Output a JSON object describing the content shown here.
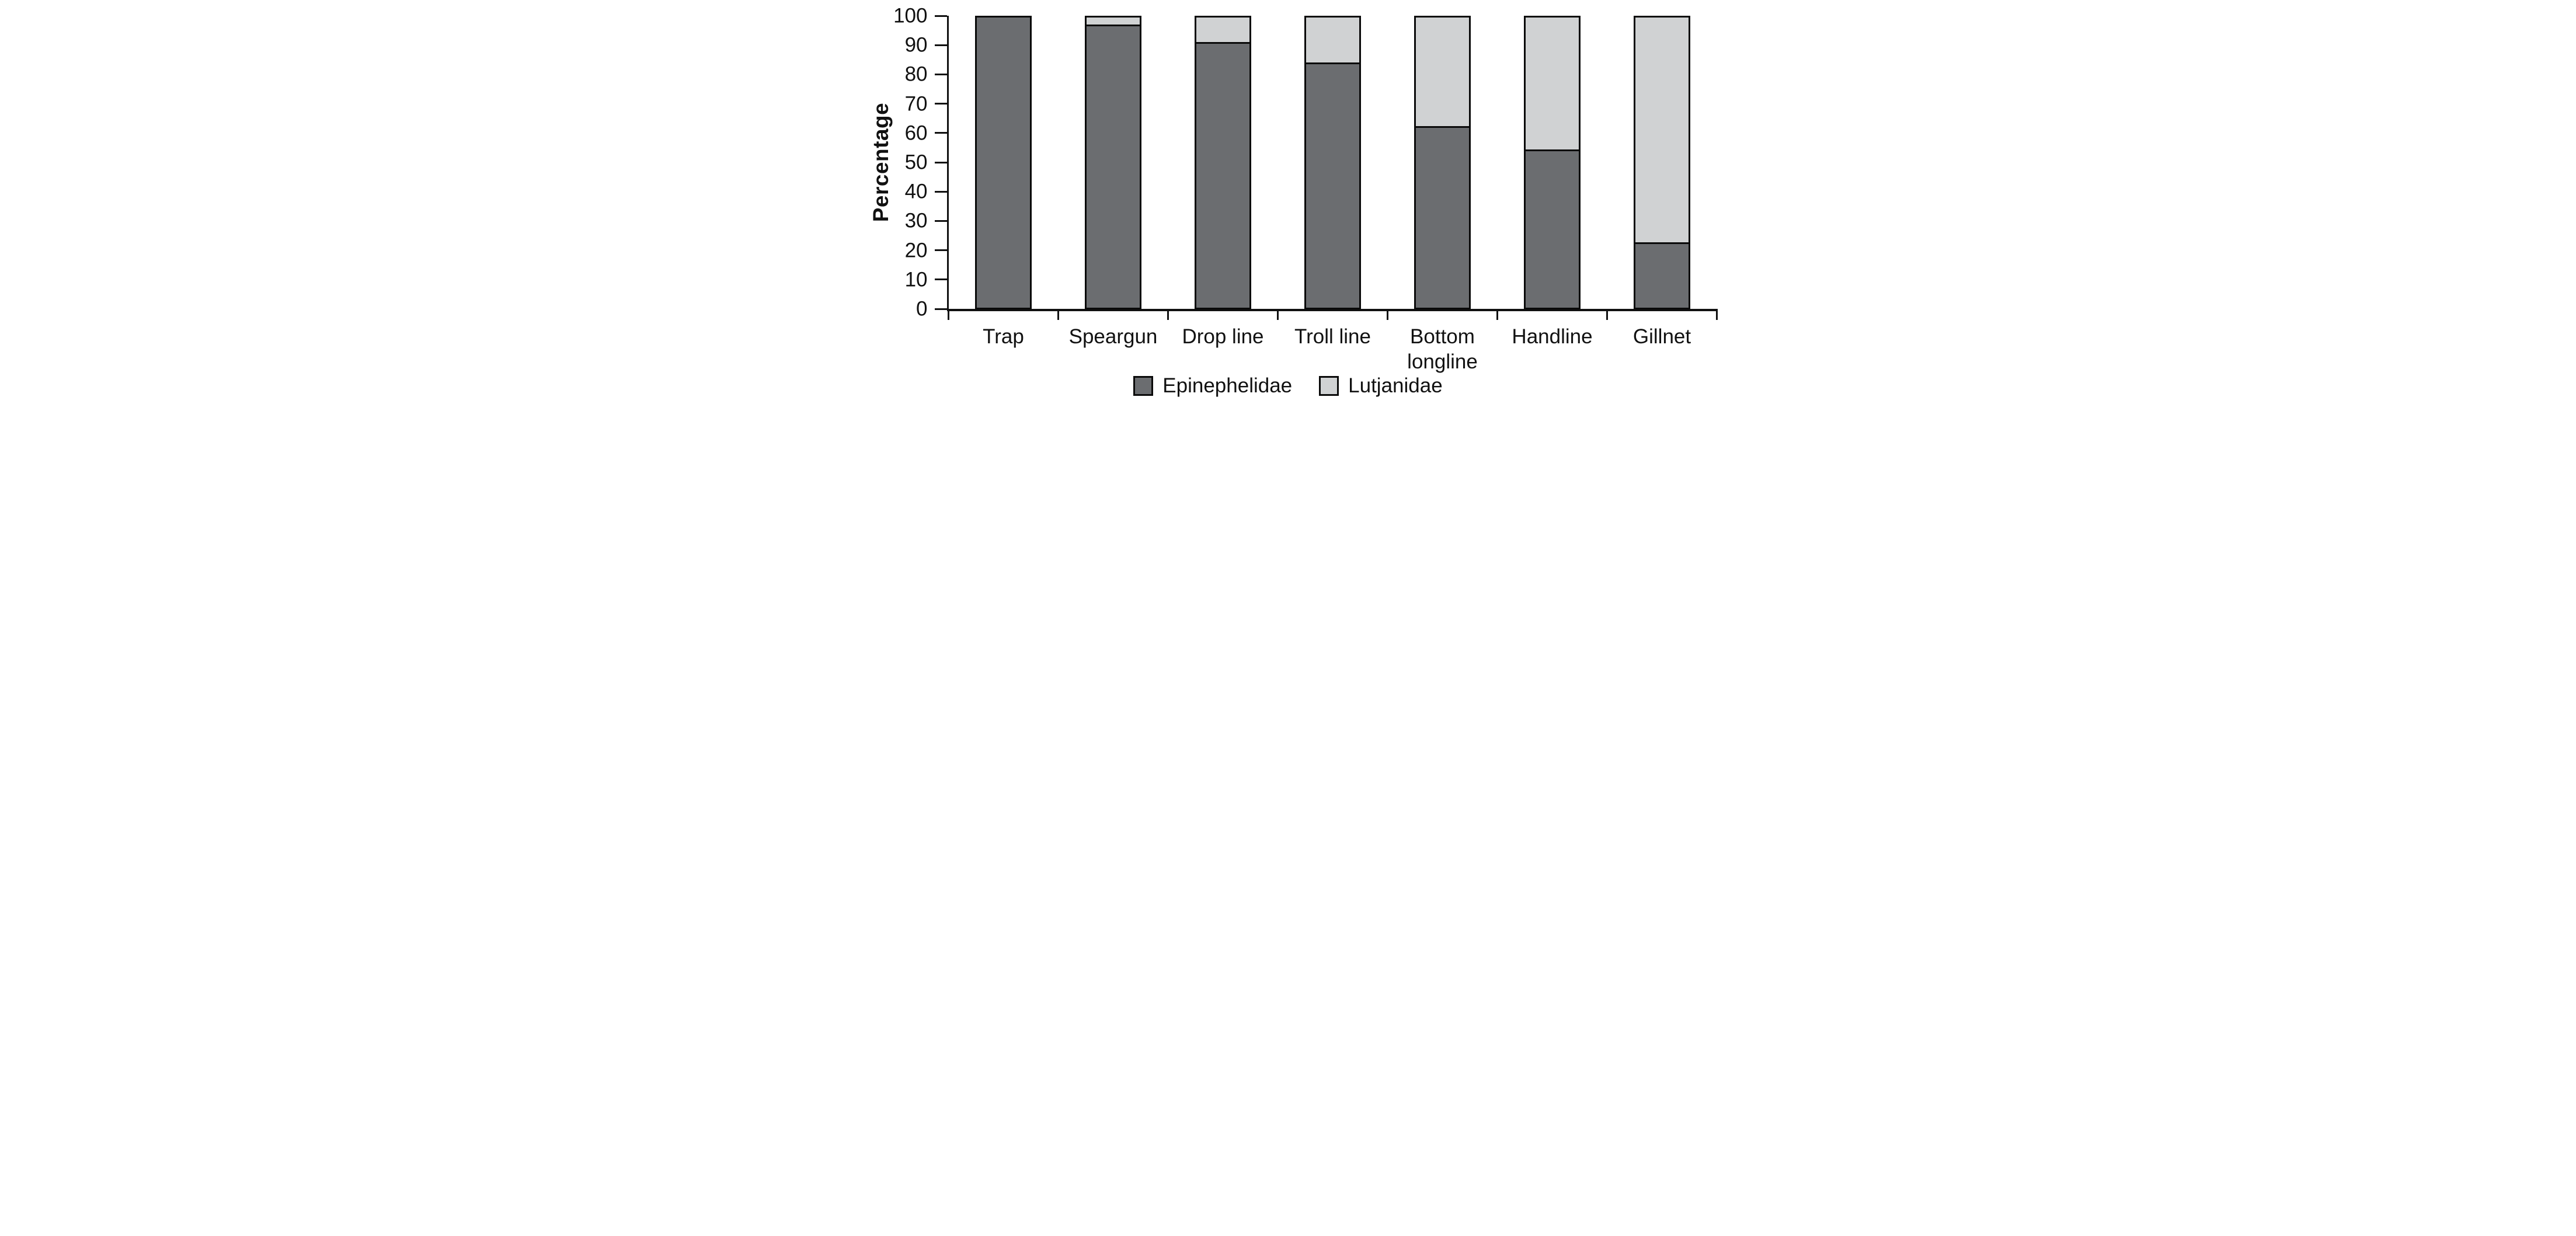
{
  "figure": {
    "background_color": "#ffffff",
    "text_color": "#111111",
    "outline_color": "#0a0a0a"
  },
  "chart_data": {
    "type": "bar",
    "stacked": true,
    "orientation": "vertical",
    "title": "",
    "xlabel": "",
    "ylabel": "Percentage",
    "ylim": [
      0,
      100
    ],
    "yticks": [
      0,
      10,
      20,
      30,
      40,
      50,
      60,
      70,
      80,
      90,
      100
    ],
    "grid": false,
    "legend_position": "bottom-center",
    "categories": [
      "Trap",
      "Speargun",
      "Drop line",
      "Troll line",
      "Bottom longline",
      "Handline",
      "Gillnet"
    ],
    "series": [
      {
        "name": "Epinephelidae",
        "color": "#6b6d70",
        "values": [
          100,
          97,
          91,
          84,
          62,
          54,
          22
        ]
      },
      {
        "name": "Lutjanidae",
        "color": "#d0d2d3",
        "values": [
          0,
          3,
          9,
          16,
          38,
          46,
          78
        ]
      }
    ]
  }
}
